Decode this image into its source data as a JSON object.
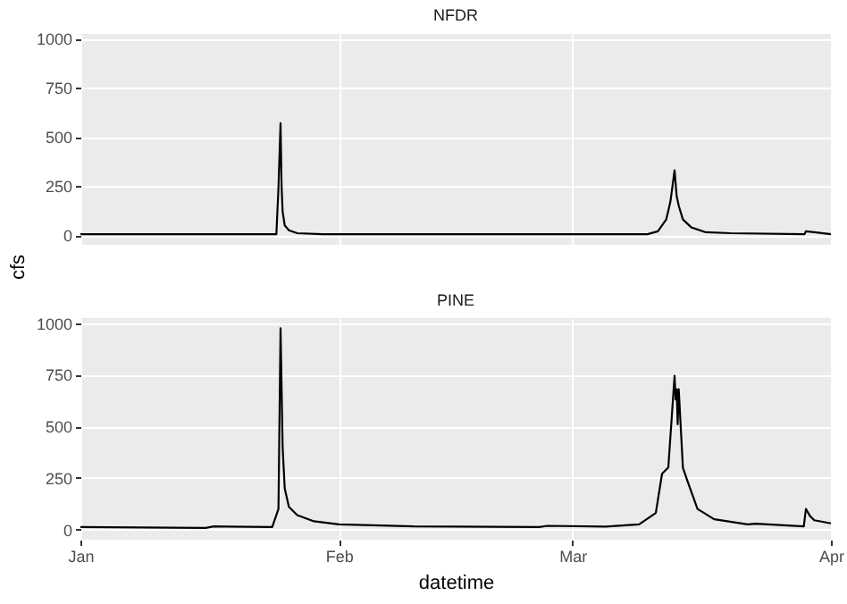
{
  "chart_data": [
    {
      "type": "line",
      "title": "NFDR",
      "ylabel": "cfs",
      "tick_labels": "y",
      "grid": true,
      "x": [
        "--01-01",
        "--01-20",
        "--01-24T12:00",
        "--01-24T18:00",
        "--01-25T00:00",
        "--01-25T03:00",
        "--01-25T06:00",
        "--01-25T12:00",
        "--01-26",
        "--01-27",
        "--01-30",
        "--02-10",
        "--03-01",
        "--03-10",
        "--03-11T06:00",
        "--03-12T06:00",
        "--03-12T18:00",
        "--03-13T06:00",
        "--03-13T12:00",
        "--03-13T18:00",
        "--03-14T06:00",
        "--03-15T06:00",
        "--03-17",
        "--03-20",
        "--03-28T20:00",
        "--03-29",
        "--03-30",
        "--04-01"
      ],
      "series": [
        {
          "color": "#000000",
          "values": [
            5,
            5,
            5,
            240,
            570,
            250,
            120,
            50,
            25,
            10,
            5,
            5,
            5,
            5,
            20,
            80,
            170,
            330,
            200,
            150,
            80,
            40,
            15,
            10,
            5,
            20,
            15,
            5
          ]
        }
      ],
      "xlim": [
        "--01-01",
        "--04-01"
      ],
      "ylim": [
        -49,
        1024
      ],
      "xticks": [
        {
          "value": "--01-01",
          "label": "Jan"
        },
        {
          "value": "--02-01",
          "label": "Feb"
        },
        {
          "value": "--03-01",
          "label": "Mar"
        },
        {
          "value": "--04-01",
          "label": "Apr"
        }
      ],
      "yticks": [
        0,
        250,
        500,
        750,
        1000
      ]
    },
    {
      "type": "line",
      "title": "PINE",
      "xlabel": "datetime",
      "grid": true,
      "x": [
        "--01-01",
        "--01-16",
        "--01-17",
        "--01-24",
        "--01-24T18:00",
        "--01-25T00:00",
        "--01-25T06:00",
        "--01-25T12:00",
        "--01-26",
        "--01-27",
        "--01-29",
        "--02-01",
        "--02-10",
        "--02-25",
        "--02-26",
        "--03-05",
        "--03-09",
        "--03-11",
        "--03-11T18:00",
        "--03-12T12:00",
        "--03-13T06:00",
        "--03-13T09:00",
        "--03-13T12:00",
        "--03-13T15:00",
        "--03-13T18:00",
        "--03-14T06:00",
        "--03-14T18:00",
        "--03-16",
        "--03-18",
        "--03-22",
        "--03-23",
        "--03-28T18:00",
        "--03-29T00:00",
        "--03-29T12:00",
        "--03-30",
        "--04-01"
      ],
      "series": [
        {
          "color": "#000000",
          "values": [
            12,
            8,
            15,
            12,
            100,
            975,
            400,
            200,
            110,
            70,
            40,
            25,
            15,
            12,
            18,
            14,
            25,
            80,
            270,
            300,
            745,
            630,
            680,
            510,
            680,
            300,
            240,
            100,
            50,
            25,
            28,
            15,
            100,
            65,
            45,
            30
          ]
        }
      ],
      "xlim": [
        "--01-01",
        "--04-01"
      ],
      "ylim": [
        -49,
        1024
      ],
      "xticks": [
        {
          "value": "--01-01",
          "label": "Jan"
        },
        {
          "value": "--02-01",
          "label": "Feb"
        },
        {
          "value": "--03-01",
          "label": "Mar"
        },
        {
          "value": "--04-01",
          "label": "Apr"
        }
      ],
      "yticks": [
        0,
        250,
        500,
        750,
        1000
      ]
    }
  ]
}
